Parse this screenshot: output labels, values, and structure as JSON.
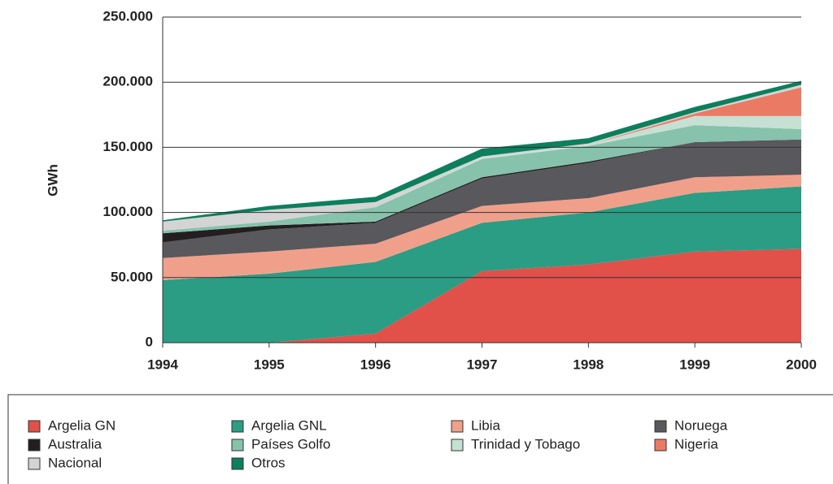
{
  "chart_data": {
    "type": "stacked_area",
    "y_label": "GWh",
    "categories": [
      "1994",
      "1995",
      "1996",
      "1997",
      "1998",
      "1999",
      "2000"
    ],
    "series": [
      {
        "name": "Argelia GN",
        "color": "#e2504a",
        "values": [
          0,
          0,
          7000,
          55000,
          60000,
          70000,
          72000
        ]
      },
      {
        "name": "Argelia GNL",
        "color": "#2a9d84",
        "values": [
          48000,
          53000,
          55000,
          37000,
          40000,
          45000,
          48000
        ]
      },
      {
        "name": "Libia",
        "color": "#f0a08a",
        "values": [
          17000,
          17000,
          14000,
          13000,
          11000,
          12000,
          9000
        ]
      },
      {
        "name": "Noruega",
        "color": "#58585d",
        "values": [
          12000,
          17000,
          16000,
          21000,
          27000,
          27000,
          27000
        ]
      },
      {
        "name": "Australia",
        "color": "#231f20",
        "values": [
          7000,
          3000,
          1000,
          1000,
          1000,
          0,
          0
        ]
      },
      {
        "name": "Países Golfo",
        "color": "#86c2ac",
        "values": [
          2000,
          3000,
          11000,
          14000,
          12000,
          13000,
          8000
        ]
      },
      {
        "name": "Trinidad y Tobago",
        "color": "#c6e0d4",
        "values": [
          0,
          0,
          0,
          1000,
          1000,
          7000,
          10000
        ]
      },
      {
        "name": "Nigeria",
        "color": "#eb7a65",
        "values": [
          0,
          0,
          0,
          0,
          0,
          2000,
          22000
        ]
      },
      {
        "name": "Nacional",
        "color": "#d4d4d4",
        "values": [
          7000,
          9000,
          4000,
          1000,
          1000,
          1000,
          2000
        ]
      },
      {
        "name": "Otros",
        "color": "#0d7f5d",
        "values": [
          1000,
          3000,
          4000,
          6000,
          4000,
          4000,
          3000
        ]
      }
    ],
    "ylim": [
      0,
      250000
    ],
    "yticks": [
      0,
      {
        "value": 50000,
        "label": "50.000"
      },
      {
        "value": 100000,
        "label": "100.000"
      },
      {
        "value": 150000,
        "label": "150.000"
      },
      {
        "value": 200000,
        "label": "200.000"
      },
      {
        "value": 250000,
        "label": "250.000"
      }
    ],
    "grid": true
  }
}
